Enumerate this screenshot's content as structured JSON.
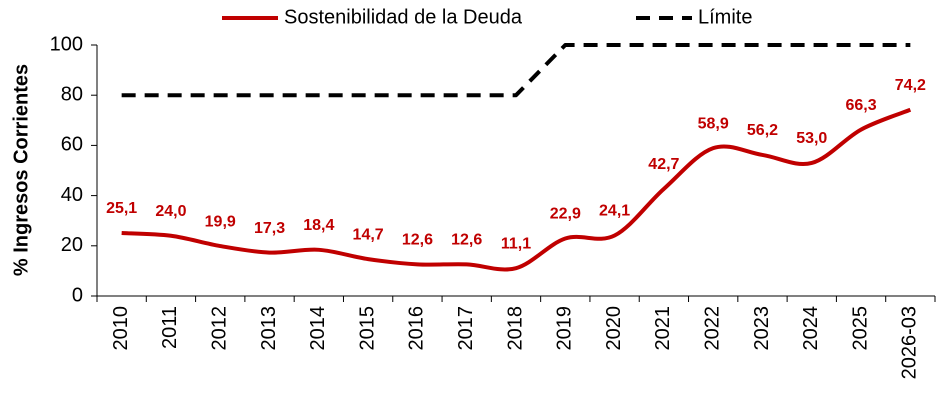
{
  "chart_data": {
    "type": "line",
    "y_label": "% Ingresos Corrientes",
    "categories": [
      "2010",
      "2011",
      "2012",
      "2013",
      "2014",
      "2015",
      "2016",
      "2017",
      "2018",
      "2019",
      "2020",
      "2021",
      "2022",
      "2023",
      "2024",
      "2025",
      "2026-03"
    ],
    "series": [
      {
        "name": "Sostenibilidad de la Deuda",
        "color": "#c00000",
        "style": "solid",
        "values": [
          25.1,
          24.0,
          19.9,
          17.3,
          18.4,
          14.7,
          12.6,
          12.6,
          11.1,
          22.9,
          24.1,
          42.7,
          58.9,
          56.2,
          53.0,
          66.3,
          74.2
        ],
        "value_labels": [
          "25,1",
          "24,0",
          "19,9",
          "17,3",
          "18,4",
          "14,7",
          "12,6",
          "12,6",
          "11,1",
          "22,9",
          "24,1",
          "42,7",
          "58,9",
          "56,2",
          "53,0",
          "66,3",
          "74,2"
        ]
      },
      {
        "name": "Límite",
        "color": "#000000",
        "style": "dashed",
        "values": [
          80,
          80,
          80,
          80,
          80,
          80,
          80,
          80,
          80,
          100,
          100,
          100,
          100,
          100,
          100,
          100,
          100
        ]
      }
    ],
    "ylim": [
      0,
      100
    ],
    "yticks": [
      0,
      20,
      40,
      60,
      80,
      100
    ],
    "grid": false,
    "legend": "top"
  }
}
